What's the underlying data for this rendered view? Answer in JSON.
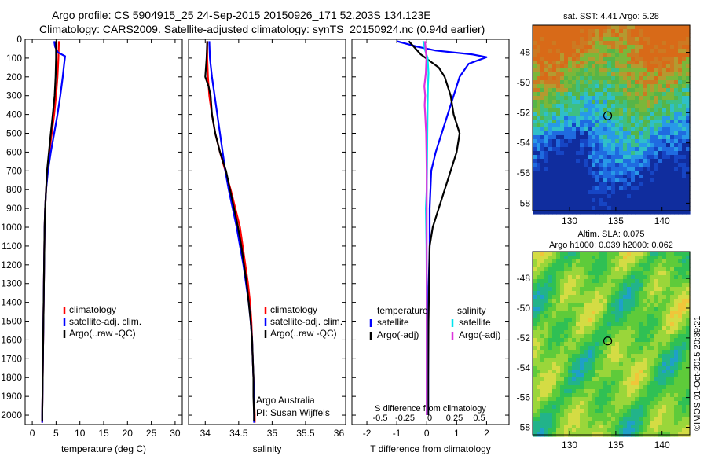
{
  "header": {
    "line1": "Argo profile: CS 5904915_25 24-Sep-2015 20150926_171 52.203S 134.123E",
    "line2": "Climatology: CARS2009. Satellite-adjusted climatology: synTS_20150924.nc (0.94d earlier)"
  },
  "colors": {
    "climatology": "#ff0000",
    "satellite": "#0000ff",
    "argo": "#000000",
    "sal_satellite": "#00e5ee",
    "sal_argo": "#dd33dd"
  },
  "chart_data": [
    {
      "id": "temperature",
      "type": "line",
      "xlabel": "temperature (deg C)",
      "xlim": [
        -1.5,
        31.5
      ],
      "xticks": [
        0,
        5,
        10,
        15,
        20,
        25,
        30
      ],
      "ylim": [
        0,
        2050
      ],
      "yticks": [
        0,
        100,
        200,
        300,
        400,
        500,
        600,
        700,
        800,
        900,
        1000,
        1100,
        1200,
        1300,
        1400,
        1500,
        1600,
        1700,
        1800,
        1900,
        2000
      ],
      "legend": [
        "climatology",
        "satellite-adj. clim.",
        "Argo(..raw -QC)"
      ],
      "series": [
        {
          "name": "climatology",
          "color": "climatology",
          "points": [
            [
              5.6,
              10
            ],
            [
              5.5,
              100
            ],
            [
              5.3,
              200
            ],
            [
              5.0,
              300
            ],
            [
              4.6,
              400
            ],
            [
              4.1,
              500
            ],
            [
              3.6,
              600
            ],
            [
              3.2,
              700
            ],
            [
              2.9,
              800
            ],
            [
              2.7,
              900
            ],
            [
              2.6,
              1000
            ],
            [
              2.5,
              1200
            ],
            [
              2.4,
              1400
            ],
            [
              2.3,
              1600
            ],
            [
              2.2,
              1800
            ],
            [
              2.1,
              2000
            ],
            [
              2.1,
              2040
            ]
          ]
        },
        {
          "name": "satellite-adj. clim.",
          "color": "satellite",
          "points": [
            [
              4.6,
              10
            ],
            [
              4.8,
              40
            ],
            [
              5.4,
              70
            ],
            [
              6.9,
              90
            ],
            [
              6.7,
              130
            ],
            [
              6.4,
              200
            ],
            [
              5.9,
              300
            ],
            [
              5.3,
              400
            ],
            [
              4.6,
              500
            ],
            [
              3.9,
              600
            ],
            [
              3.3,
              700
            ],
            [
              2.9,
              800
            ],
            [
              2.7,
              900
            ],
            [
              2.6,
              1000
            ],
            [
              2.5,
              1200
            ],
            [
              2.4,
              1400
            ],
            [
              2.3,
              1600
            ],
            [
              2.2,
              1800
            ],
            [
              2.1,
              2000
            ],
            [
              2.1,
              2040
            ]
          ]
        },
        {
          "name": "Argo(..raw -QC)",
          "color": "argo",
          "points": [
            [
              5.0,
              10
            ],
            [
              5.0,
              100
            ],
            [
              4.9,
              200
            ],
            [
              4.7,
              300
            ],
            [
              4.3,
              400
            ],
            [
              3.9,
              500
            ],
            [
              3.5,
              600
            ],
            [
              3.1,
              700
            ],
            [
              2.9,
              800
            ],
            [
              2.7,
              900
            ],
            [
              2.6,
              1000
            ],
            [
              2.5,
              1200
            ],
            [
              2.4,
              1400
            ],
            [
              2.3,
              1600
            ],
            [
              2.2,
              1800
            ],
            [
              2.1,
              2000
            ],
            [
              2.1,
              2030
            ]
          ]
        }
      ]
    },
    {
      "id": "salinity",
      "type": "line",
      "xlabel": "salinity",
      "xlim": [
        33.75,
        36.1
      ],
      "xticks": [
        34,
        34.5,
        35,
        35.5,
        36
      ],
      "xticklabels": [
        "34",
        "34.5",
        "35",
        "35.5",
        "36"
      ],
      "ylim": [
        0,
        2050
      ],
      "legend": [
        "climatology",
        "satellite-adj. clim.",
        "Argo(..raw -QC)"
      ],
      "notes": [
        "Argo Australia",
        "PI: Susan Wijffels"
      ],
      "series": [
        {
          "name": "climatology",
          "color": "climatology",
          "points": [
            [
              34.03,
              10
            ],
            [
              34.03,
              100
            ],
            [
              34.04,
              200
            ],
            [
              34.06,
              300
            ],
            [
              34.1,
              400
            ],
            [
              34.15,
              500
            ],
            [
              34.22,
              600
            ],
            [
              34.3,
              700
            ],
            [
              34.38,
              800
            ],
            [
              34.45,
              900
            ],
            [
              34.52,
              1000
            ],
            [
              34.56,
              1100
            ],
            [
              34.6,
              1200
            ],
            [
              34.64,
              1300
            ],
            [
              34.67,
              1400
            ],
            [
              34.69,
              1500
            ],
            [
              34.7,
              1600
            ],
            [
              34.71,
              1700
            ],
            [
              34.72,
              1800
            ],
            [
              34.73,
              1900
            ],
            [
              34.74,
              2000
            ],
            [
              34.74,
              2040
            ]
          ]
        },
        {
          "name": "satellite-adj. clim.",
          "color": "satellite",
          "points": [
            [
              34.06,
              10
            ],
            [
              34.07,
              100
            ],
            [
              34.1,
              200
            ],
            [
              34.14,
              300
            ],
            [
              34.18,
              400
            ],
            [
              34.22,
              500
            ],
            [
              34.26,
              600
            ],
            [
              34.3,
              700
            ],
            [
              34.35,
              800
            ],
            [
              34.41,
              900
            ],
            [
              34.47,
              1000
            ],
            [
              34.52,
              1100
            ],
            [
              34.57,
              1200
            ],
            [
              34.61,
              1300
            ],
            [
              34.65,
              1400
            ],
            [
              34.68,
              1500
            ],
            [
              34.7,
              1600
            ],
            [
              34.71,
              1700
            ],
            [
              34.72,
              1800
            ],
            [
              34.73,
              1900
            ],
            [
              34.73,
              2000
            ],
            [
              34.73,
              2040
            ]
          ]
        },
        {
          "name": "Argo(..raw -QC)",
          "color": "argo",
          "points": [
            [
              34.03,
              10
            ],
            [
              34.02,
              100
            ],
            [
              34.0,
              200
            ],
            [
              34.05,
              250
            ],
            [
              34.08,
              300
            ],
            [
              34.1,
              400
            ],
            [
              34.15,
              500
            ],
            [
              34.22,
              600
            ],
            [
              34.31,
              700
            ],
            [
              34.37,
              800
            ],
            [
              34.43,
              900
            ],
            [
              34.49,
              1000
            ],
            [
              34.54,
              1100
            ],
            [
              34.58,
              1200
            ],
            [
              34.62,
              1300
            ],
            [
              34.65,
              1400
            ],
            [
              34.68,
              1500
            ],
            [
              34.7,
              1600
            ],
            [
              34.71,
              1700
            ],
            [
              34.72,
              1800
            ],
            [
              34.72,
              1900
            ],
            [
              34.73,
              2000
            ],
            [
              34.73,
              2030
            ]
          ]
        }
      ]
    },
    {
      "id": "difference",
      "type": "line",
      "xlabel": "T difference from climatology",
      "xlabel_top": "S difference from climatology",
      "xlim": [
        -2.5,
        2.75
      ],
      "xticks": [
        -2,
        -1,
        0,
        1,
        2
      ],
      "sticks": [
        -0.5,
        -0.25,
        0,
        0.25,
        0.5
      ],
      "sticklabels": [
        "-0.5",
        "-0.25",
        "0",
        "0.25",
        "0.5"
      ],
      "ylim": [
        0,
        2050
      ],
      "legend_titles": [
        "temperature",
        "salinity"
      ],
      "legend": [
        "satellite",
        "Argo(-adj)",
        "satellite",
        "Argo(-adj)"
      ],
      "series": [
        {
          "name": "T satellite",
          "color": "satellite",
          "points": [
            [
              -1.0,
              10
            ],
            [
              -0.3,
              40
            ],
            [
              0.3,
              60
            ],
            [
              1.5,
              80
            ],
            [
              2.0,
              95
            ],
            [
              1.4,
              130
            ],
            [
              1.1,
              200
            ],
            [
              0.9,
              300
            ],
            [
              0.7,
              400
            ],
            [
              0.5,
              500
            ],
            [
              0.3,
              600
            ],
            [
              0.15,
              700
            ],
            [
              0.1,
              900
            ],
            [
              0.1,
              1100
            ],
            [
              0.05,
              1400
            ],
            [
              0.05,
              1700
            ],
            [
              0.05,
              2000
            ]
          ]
        },
        {
          "name": "T Argo(-adj)",
          "color": "argo",
          "points": [
            [
              -0.6,
              10
            ],
            [
              -0.2,
              80
            ],
            [
              0.4,
              150
            ],
            [
              0.6,
              200
            ],
            [
              0.8,
              300
            ],
            [
              0.9,
              400
            ],
            [
              1.1,
              500
            ],
            [
              1.0,
              600
            ],
            [
              0.8,
              700
            ],
            [
              0.6,
              800
            ],
            [
              0.4,
              900
            ],
            [
              0.2,
              1000
            ],
            [
              0.1,
              1100
            ],
            [
              0.08,
              1300
            ],
            [
              0.06,
              1500
            ],
            [
              0.05,
              1800
            ],
            [
              0.05,
              2000
            ]
          ]
        },
        {
          "name": "S satellite",
          "color": "sal_satellite",
          "points": [
            [
              -0.12,
              10
            ],
            [
              -0.05,
              60
            ],
            [
              0.03,
              100
            ],
            [
              0.06,
              180
            ],
            [
              0.04,
              250
            ],
            [
              0.03,
              350
            ],
            [
              0.02,
              500
            ],
            [
              0.01,
              700
            ],
            [
              0.0,
              800
            ],
            [
              -0.03,
              900
            ],
            [
              -0.02,
              1000
            ],
            [
              -0.01,
              1100
            ],
            [
              0.0,
              1300
            ],
            [
              0.0,
              1500
            ],
            [
              0.0,
              1800
            ],
            [
              0.0,
              2000
            ]
          ]
        },
        {
          "name": "S Argo(-adj)",
          "color": "sal_argo",
          "points": [
            [
              -0.06,
              10
            ],
            [
              -0.01,
              100
            ],
            [
              -0.03,
              180
            ],
            [
              -0.08,
              250
            ],
            [
              -0.05,
              300
            ],
            [
              -0.07,
              350
            ],
            [
              -0.05,
              400
            ],
            [
              -0.02,
              500
            ],
            [
              -0.01,
              600
            ],
            [
              0.0,
              700
            ],
            [
              0.0,
              900
            ],
            [
              0.0,
              1200
            ],
            [
              0.0,
              1500
            ],
            [
              0.0,
              1800
            ],
            [
              0.0,
              2000
            ]
          ]
        }
      ]
    }
  ],
  "maps": [
    {
      "id": "sst-map",
      "title": "sat. SST: 4.41  Argo: 5.28",
      "xlim": [
        126,
        143
      ],
      "ylim": [
        -58.5,
        -46.2
      ],
      "xticks": [
        130,
        135,
        140
      ],
      "yticks": [
        -48,
        -50,
        -52,
        -54,
        -56,
        -58
      ],
      "marker": [
        134.123,
        -52.203
      ],
      "palette": [
        "#102d9e",
        "#1645c4",
        "#1f6be0",
        "#2899e8",
        "#2fbfc9",
        "#3dbf84",
        "#56b548",
        "#7ab73a",
        "#b49a30",
        "#cc7a22",
        "#d86a18"
      ]
    },
    {
      "id": "sla-map",
      "title_line1": "Altim. SLA: 0.075",
      "title_line2": "Argo h1000: 0.039 h2000: 0.062",
      "xlim": [
        126,
        143
      ],
      "ylim": [
        -58.5,
        -46.2
      ],
      "xticks": [
        130,
        135,
        140
      ],
      "yticks": [
        -48,
        -50,
        -52,
        -54,
        -56,
        -58
      ],
      "marker": [
        134.123,
        -52.203
      ],
      "palette": [
        "#1fa0c8",
        "#22b38a",
        "#2fc054",
        "#5ecb3a",
        "#9ad63a",
        "#d4dc44",
        "#f0c63a",
        "#f49a2c"
      ]
    }
  ],
  "watermark": "©IMOS 01-Oct-2015 20:39:21"
}
